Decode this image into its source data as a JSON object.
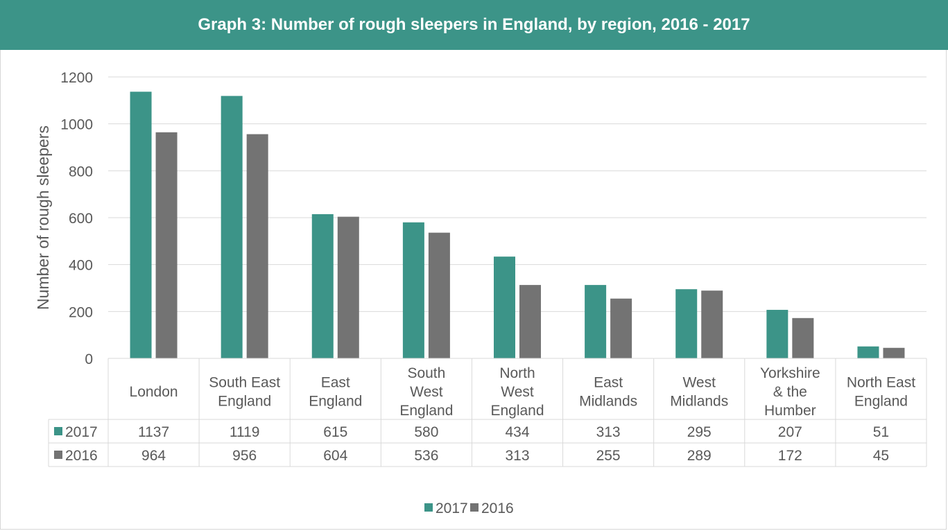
{
  "chart_data": {
    "type": "bar",
    "title": "Graph 3: Number of rough sleepers in England, by region, 2016 - 2017",
    "xlabel": "",
    "ylabel": "Number of rough sleepers",
    "ylim": [
      0,
      1200
    ],
    "yticks": [
      0,
      200,
      400,
      600,
      800,
      1000,
      1200
    ],
    "grid": true,
    "legend_position": "bottom",
    "data_table": true,
    "categories": [
      [
        "London"
      ],
      [
        "South East",
        "England"
      ],
      [
        "East",
        "England"
      ],
      [
        "South",
        "West",
        "England"
      ],
      [
        "North",
        "West",
        "England"
      ],
      [
        "East",
        "Midlands"
      ],
      [
        "West",
        "Midlands"
      ],
      [
        "Yorkshire",
        "& the",
        "Humber"
      ],
      [
        "North East",
        "England"
      ]
    ],
    "series": [
      {
        "name": "2017",
        "color": "#3c9488",
        "values": [
          1137,
          1119,
          615,
          580,
          434,
          313,
          295,
          207,
          51
        ]
      },
      {
        "name": "2016",
        "color": "#737373",
        "values": [
          964,
          956,
          604,
          536,
          313,
          255,
          289,
          172,
          45
        ]
      }
    ]
  }
}
